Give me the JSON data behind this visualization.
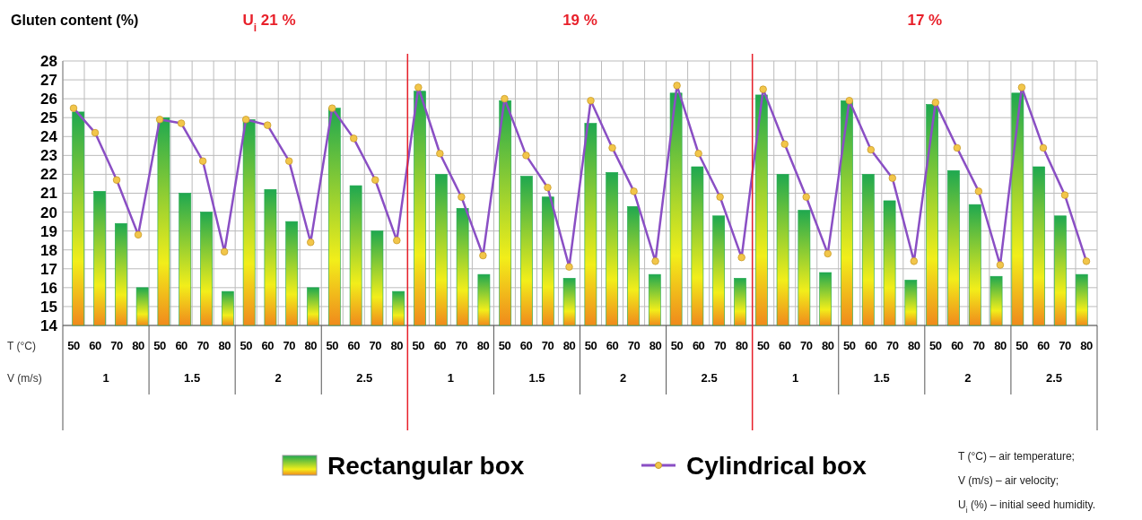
{
  "chart_data": {
    "type": "bar",
    "ylabel": "Gluten content (%)",
    "categories": [
      "50",
      "60",
      "70",
      "80",
      "50",
      "60",
      "70",
      "80",
      "50",
      "60",
      "70",
      "80",
      "50",
      "60",
      "70",
      "80",
      "50",
      "60",
      "70",
      "80",
      "50",
      "60",
      "70",
      "80",
      "50",
      "60",
      "70",
      "80",
      "50",
      "60",
      "70",
      "80",
      "50",
      "60",
      "70",
      "80",
      "50",
      "60",
      "70",
      "80",
      "50",
      "60",
      "70",
      "80",
      "50",
      "60",
      "70",
      "80"
    ],
    "series": [
      {
        "name": "Rectangular box",
        "color": "#1fa84f",
        "values": [
          25.3,
          21.1,
          19.4,
          16.0,
          25.0,
          21.0,
          20.0,
          15.8,
          24.9,
          21.2,
          19.5,
          16.0,
          25.5,
          21.4,
          19.0,
          15.8,
          26.4,
          22.0,
          20.2,
          16.7,
          25.9,
          21.9,
          20.8,
          16.5,
          24.7,
          22.1,
          20.3,
          16.7,
          26.3,
          22.4,
          19.8,
          16.5,
          26.2,
          22.0,
          20.1,
          16.8,
          25.9,
          22.0,
          20.6,
          16.4,
          25.7,
          22.2,
          20.4,
          16.6,
          26.3,
          22.4,
          19.8,
          16.7
        ]
      },
      {
        "name": "Cylindrical box",
        "type": "line",
        "color": "#8a4fc4",
        "values": [
          25.5,
          24.2,
          21.7,
          18.8,
          24.9,
          24.7,
          22.7,
          17.9,
          24.9,
          24.6,
          22.7,
          18.4,
          25.5,
          23.9,
          21.7,
          18.5,
          26.6,
          23.1,
          20.8,
          17.7,
          26.0,
          23.0,
          21.3,
          17.1,
          25.9,
          23.4,
          21.1,
          17.4,
          26.7,
          23.1,
          20.8,
          17.6,
          26.5,
          23.6,
          20.8,
          17.8,
          25.9,
          23.3,
          21.8,
          17.4,
          25.8,
          23.4,
          21.1,
          17.2,
          26.6,
          23.4,
          20.9,
          17.4
        ]
      }
    ],
    "ylim": [
      14,
      28
    ],
    "yticks": [
      14,
      15,
      16,
      17,
      18,
      19,
      20,
      21,
      22,
      23,
      24,
      25,
      26,
      27,
      28
    ],
    "grid": true,
    "legend": "bottom",
    "marker": "circle",
    "annotations": [
      "U$_{i}$  21 %",
      "19 %",
      "17 %",
      "T (°C)",
      "V (m/s)",
      "1",
      "1.5",
      "2",
      "2.5",
      "1",
      "1.5",
      "2",
      "2.5",
      "1",
      "1.5",
      "2",
      "2.5",
      "T (°C) – air temperature;",
      "V (m/s) – air velocity;",
      "U$_{i}$ (%) – initial seed humidity."
    ]
  }
}
